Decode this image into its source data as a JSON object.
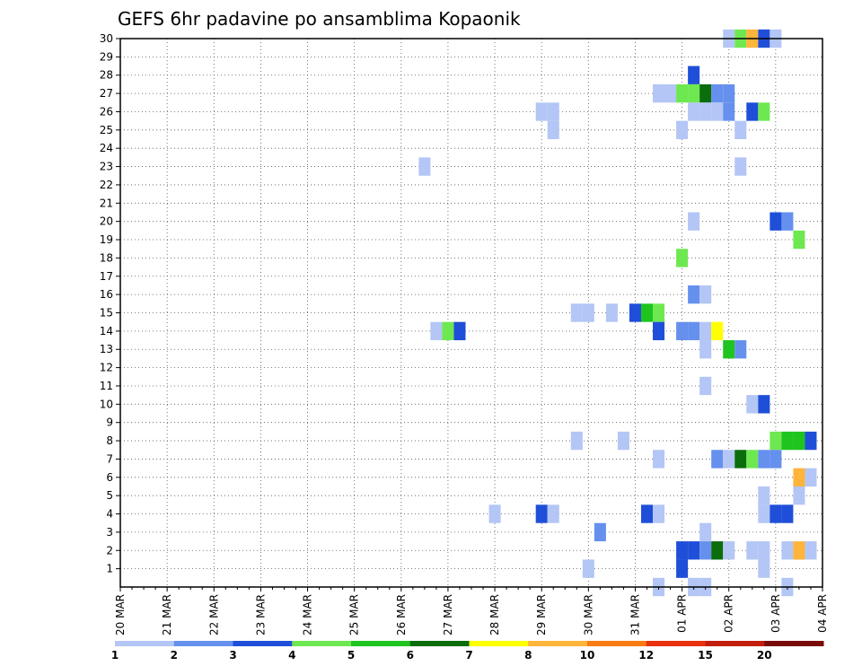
{
  "chart_data": {
    "type": "heatmap",
    "title": "GEFS 6hr padavine po ansamblima Kopaonik",
    "xlabel": "",
    "ylabel": "",
    "x_tick_labels": [
      "20 MAR",
      "21 MAR",
      "22 MAR",
      "23 MAR",
      "24 MAR",
      "25 MAR",
      "26 MAR",
      "27 MAR",
      "28 MAR",
      "29 MAR",
      "30 MAR",
      "31 MAR",
      "01 APR",
      "02 APR",
      "03 APR",
      "04 APR"
    ],
    "y_tick_labels": [
      "1",
      "2",
      "3",
      "4",
      "5",
      "6",
      "7",
      "8",
      "9",
      "10",
      "11",
      "12",
      "13",
      "14",
      "15",
      "16",
      "17",
      "18",
      "19",
      "20",
      "21",
      "22",
      "23",
      "24",
      "25",
      "26",
      "27",
      "28",
      "29",
      "30"
    ],
    "x_unit": "6-hour steps from 20 MAR 00Z",
    "xlim": [
      0,
      59
    ],
    "ylim": [
      0,
      30
    ],
    "grid": true,
    "legend": {
      "placement": "bottom",
      "bins": [
        {
          "color": "#b3c6f5"
        },
        {
          "color": "#6690ee"
        },
        {
          "color": "#1f4fd9"
        },
        {
          "color": "#6ee850"
        },
        {
          "color": "#1fc41f"
        },
        {
          "color": "#0b6d0b"
        },
        {
          "color": "#ffff00"
        },
        {
          "color": "#ffb43c"
        },
        {
          "color": "#f97b14"
        },
        {
          "color": "#e8320e"
        },
        {
          "color": "#c21e0e"
        },
        {
          "color": "#7a0a0a"
        }
      ],
      "tick_labels": [
        "1",
        "2",
        "3",
        "4",
        "5",
        "6",
        "7",
        "8",
        "10",
        "12",
        "15",
        "20"
      ]
    },
    "cells": [
      {
        "x": 52,
        "y": 30,
        "v": 1
      },
      {
        "x": 53,
        "y": 30,
        "v": 4
      },
      {
        "x": 54,
        "y": 30,
        "v": 8
      },
      {
        "x": 55,
        "y": 30,
        "v": 3
      },
      {
        "x": 56,
        "y": 30,
        "v": 1
      },
      {
        "x": 49,
        "y": 28,
        "v": 3
      },
      {
        "x": 46,
        "y": 27,
        "v": 1
      },
      {
        "x": 47,
        "y": 27,
        "v": 1
      },
      {
        "x": 48,
        "y": 27,
        "v": 4
      },
      {
        "x": 49,
        "y": 27,
        "v": 4
      },
      {
        "x": 50,
        "y": 27,
        "v": 6
      },
      {
        "x": 51,
        "y": 27,
        "v": 2
      },
      {
        "x": 52,
        "y": 27,
        "v": 2
      },
      {
        "x": 36,
        "y": 26,
        "v": 1
      },
      {
        "x": 37,
        "y": 26,
        "v": 1
      },
      {
        "x": 49,
        "y": 26,
        "v": 1
      },
      {
        "x": 50,
        "y": 26,
        "v": 1
      },
      {
        "x": 51,
        "y": 26,
        "v": 1
      },
      {
        "x": 52,
        "y": 26,
        "v": 2
      },
      {
        "x": 54,
        "y": 26,
        "v": 3
      },
      {
        "x": 55,
        "y": 26,
        "v": 4
      },
      {
        "x": 37,
        "y": 25,
        "v": 1
      },
      {
        "x": 48,
        "y": 25,
        "v": 1
      },
      {
        "x": 53,
        "y": 25,
        "v": 1
      },
      {
        "x": 26,
        "y": 23,
        "v": 1
      },
      {
        "x": 53,
        "y": 23,
        "v": 1
      },
      {
        "x": 49,
        "y": 20,
        "v": 1
      },
      {
        "x": 56,
        "y": 20,
        "v": 3
      },
      {
        "x": 57,
        "y": 20,
        "v": 2
      },
      {
        "x": 58,
        "y": 19,
        "v": 4
      },
      {
        "x": 48,
        "y": 18,
        "v": 4
      },
      {
        "x": 49,
        "y": 16,
        "v": 2
      },
      {
        "x": 50,
        "y": 16,
        "v": 1
      },
      {
        "x": 39,
        "y": 15,
        "v": 1
      },
      {
        "x": 40,
        "y": 15,
        "v": 1
      },
      {
        "x": 42,
        "y": 15,
        "v": 1
      },
      {
        "x": 44,
        "y": 15,
        "v": 3
      },
      {
        "x": 45,
        "y": 15,
        "v": 5
      },
      {
        "x": 46,
        "y": 15,
        "v": 4
      },
      {
        "x": 27,
        "y": 14,
        "v": 1
      },
      {
        "x": 28,
        "y": 14,
        "v": 4
      },
      {
        "x": 29,
        "y": 14,
        "v": 3
      },
      {
        "x": 46,
        "y": 14,
        "v": 3
      },
      {
        "x": 48,
        "y": 14,
        "v": 2
      },
      {
        "x": 49,
        "y": 14,
        "v": 2
      },
      {
        "x": 50,
        "y": 14,
        "v": 1
      },
      {
        "x": 51,
        "y": 14,
        "v": 7
      },
      {
        "x": 50,
        "y": 13,
        "v": 1
      },
      {
        "x": 52,
        "y": 13,
        "v": 5
      },
      {
        "x": 53,
        "y": 13,
        "v": 2
      },
      {
        "x": 50,
        "y": 11,
        "v": 1
      },
      {
        "x": 54,
        "y": 10,
        "v": 1
      },
      {
        "x": 55,
        "y": 10,
        "v": 3
      },
      {
        "x": 39,
        "y": 8,
        "v": 1
      },
      {
        "x": 43,
        "y": 8,
        "v": 1
      },
      {
        "x": 56,
        "y": 8,
        "v": 4
      },
      {
        "x": 57,
        "y": 8,
        "v": 5
      },
      {
        "x": 58,
        "y": 8,
        "v": 5
      },
      {
        "x": 59,
        "y": 8,
        "v": 3
      },
      {
        "x": 46,
        "y": 7,
        "v": 1
      },
      {
        "x": 51,
        "y": 7,
        "v": 2
      },
      {
        "x": 52,
        "y": 7,
        "v": 1
      },
      {
        "x": 53,
        "y": 7,
        "v": 6
      },
      {
        "x": 54,
        "y": 7,
        "v": 4
      },
      {
        "x": 55,
        "y": 7,
        "v": 2
      },
      {
        "x": 56,
        "y": 7,
        "v": 2
      },
      {
        "x": 58,
        "y": 6,
        "v": 8
      },
      {
        "x": 59,
        "y": 6,
        "v": 1
      },
      {
        "x": 55,
        "y": 5,
        "v": 1
      },
      {
        "x": 58,
        "y": 5,
        "v": 1
      },
      {
        "x": 32,
        "y": 4,
        "v": 1
      },
      {
        "x": 36,
        "y": 4,
        "v": 3
      },
      {
        "x": 37,
        "y": 4,
        "v": 1
      },
      {
        "x": 45,
        "y": 4,
        "v": 3
      },
      {
        "x": 46,
        "y": 4,
        "v": 1
      },
      {
        "x": 55,
        "y": 4,
        "v": 1
      },
      {
        "x": 56,
        "y": 4,
        "v": 3
      },
      {
        "x": 57,
        "y": 4,
        "v": 3
      },
      {
        "x": 41,
        "y": 3,
        "v": 2
      },
      {
        "x": 50,
        "y": 3,
        "v": 1
      },
      {
        "x": 48,
        "y": 2,
        "v": 3
      },
      {
        "x": 49,
        "y": 2,
        "v": 3
      },
      {
        "x": 50,
        "y": 2,
        "v": 2
      },
      {
        "x": 51,
        "y": 2,
        "v": 6
      },
      {
        "x": 52,
        "y": 2,
        "v": 1
      },
      {
        "x": 54,
        "y": 2,
        "v": 1
      },
      {
        "x": 55,
        "y": 2,
        "v": 1
      },
      {
        "x": 57,
        "y": 2,
        "v": 1
      },
      {
        "x": 58,
        "y": 2,
        "v": 8
      },
      {
        "x": 59,
        "y": 2,
        "v": 1
      },
      {
        "x": 48,
        "y": 1,
        "v": 3
      },
      {
        "x": 55,
        "y": 1,
        "v": 1
      },
      {
        "x": 40,
        "y": 1,
        "v": 1
      },
      {
        "x": 46,
        "y": 0,
        "v": 1
      },
      {
        "x": 49,
        "y": 0,
        "v": 1
      },
      {
        "x": 50,
        "y": 0,
        "v": 1
      },
      {
        "x": 57,
        "y": 0,
        "v": 1
      }
    ]
  }
}
